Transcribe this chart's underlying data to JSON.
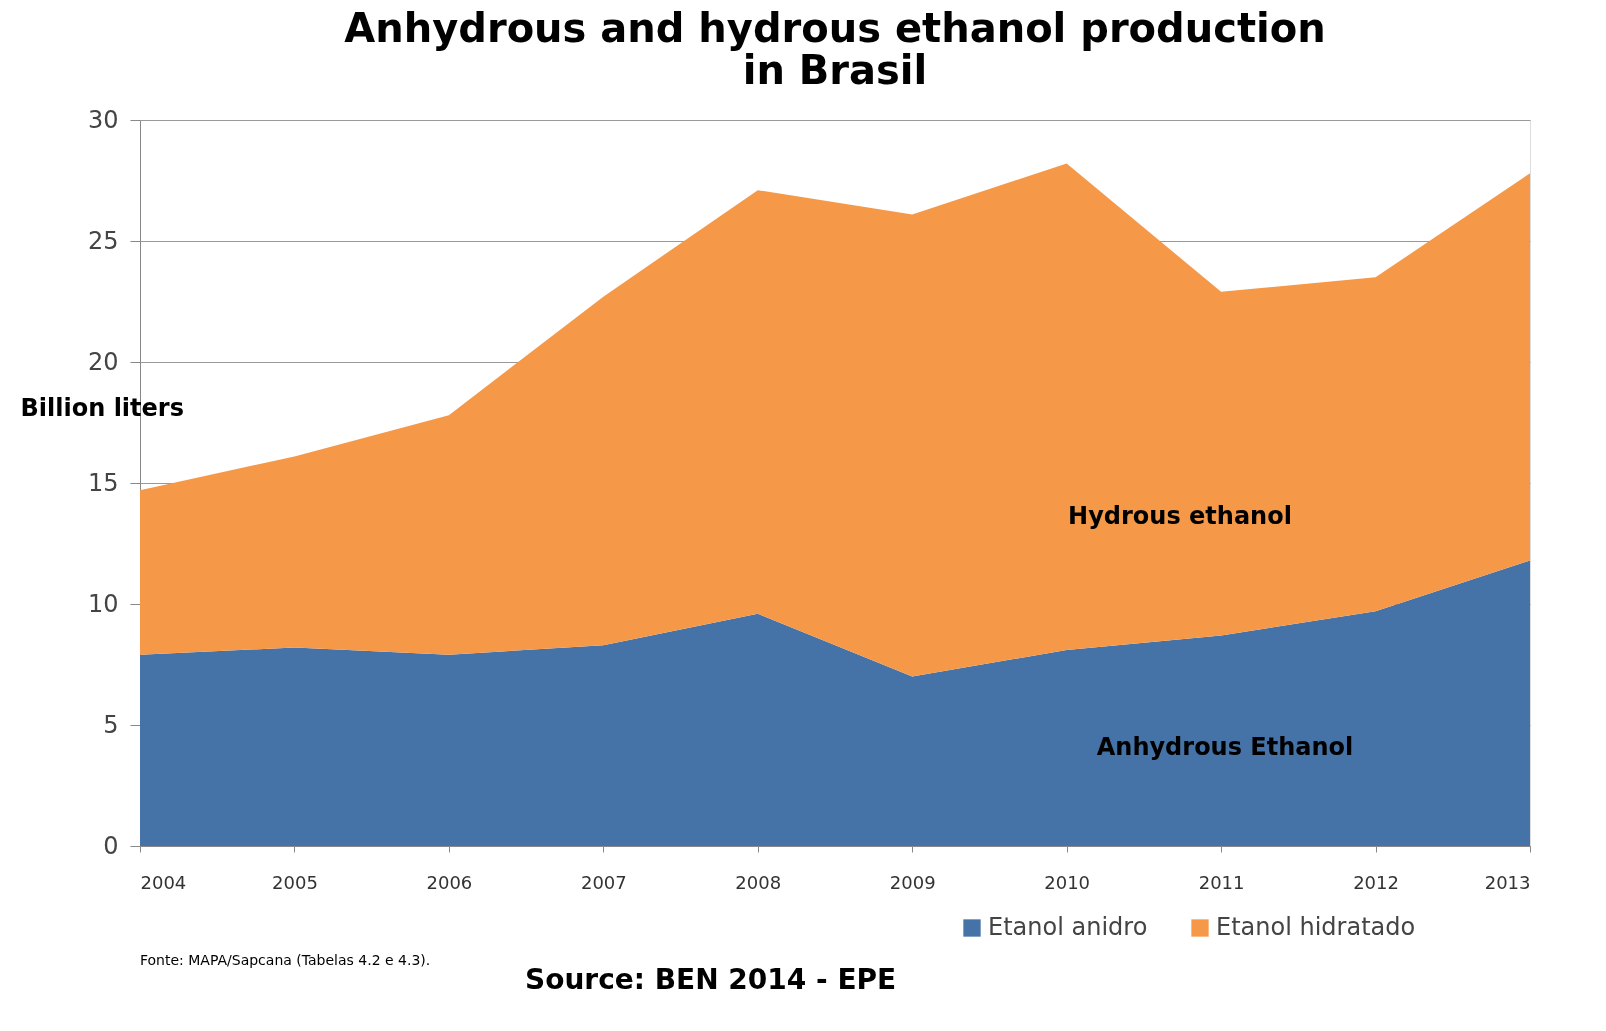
{
  "chart_data": {
    "type": "area",
    "title": [
      "Anhydrous and hydrous ethanol production",
      "in Brasil"
    ],
    "ylabel": "Billion liters",
    "x": [
      2004,
      2005,
      2006,
      2007,
      2008,
      2009,
      2010,
      2011,
      2012,
      2013
    ],
    "stacked": true,
    "series": [
      {
        "name": "Etanol anidro",
        "color": "#4572a7",
        "values": [
          7.9,
          8.2,
          7.9,
          8.3,
          9.6,
          7.0,
          8.1,
          8.7,
          9.7,
          11.8
        ]
      },
      {
        "name": "Etanol hidratado",
        "color": "#f59848",
        "values": [
          6.8,
          7.9,
          9.9,
          14.4,
          17.5,
          19.1,
          20.1,
          14.2,
          13.8,
          16.0
        ]
      }
    ],
    "xlim": [
      2004,
      2013
    ],
    "xticks": [
      2004,
      2005,
      2006,
      2007,
      2008,
      2009,
      2010,
      2011,
      2012,
      2013
    ],
    "ylim": [
      0,
      30
    ],
    "yticks": [
      0,
      5,
      10,
      15,
      20,
      25,
      30
    ],
    "grid": "y",
    "legend": "bottom right",
    "annotations": [
      "Hydrous ethanol",
      "Anhydrous Ethanol",
      "Fonte: MAPA/Sapcana (Tabelas 4.2 e 4.3).",
      "Source: BEN 2014 - EPE"
    ]
  }
}
